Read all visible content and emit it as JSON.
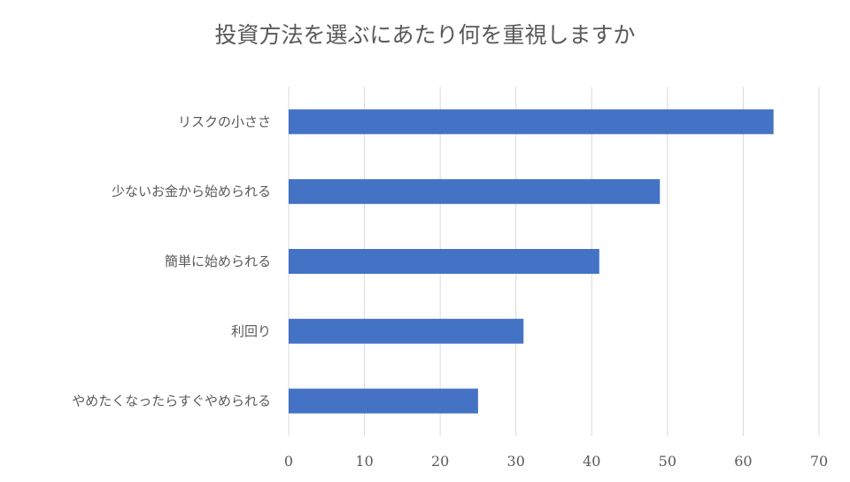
{
  "chart_data": {
    "type": "bar",
    "orientation": "horizontal",
    "title": "投資方法を選ぶにあたり何を重視しますか",
    "categories": [
      "リスクの小ささ",
      "少ないお金から始められる",
      "簡単に始められる",
      "利回り",
      "やめたくなったらすぐやめられる"
    ],
    "values": [
      64,
      49,
      41,
      31,
      25
    ],
    "xlim": [
      0,
      70
    ],
    "xticks": [
      0,
      10,
      20,
      30,
      40,
      50,
      60,
      70
    ],
    "grid": true,
    "legend": false,
    "colors": {
      "bar": "#4472c4",
      "grid": "#d9d9d9",
      "text": "#595959"
    }
  }
}
